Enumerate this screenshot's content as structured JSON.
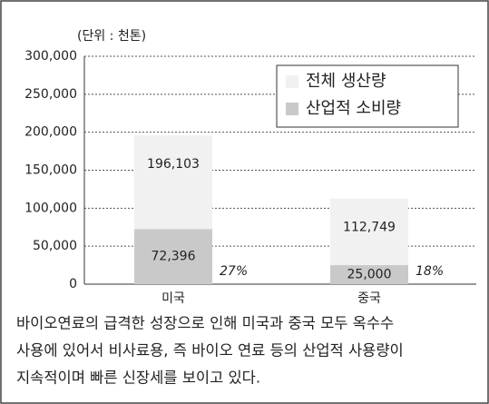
{
  "chart_data": {
    "type": "bar",
    "subtitle": "(단위 : 천톤)",
    "categories": [
      "미국",
      "중국"
    ],
    "series": [
      {
        "name": "전체 생산량",
        "color": "#f1f1f1",
        "values": [
          196103,
          112749
        ],
        "value_labels": [
          "196,103",
          "112,749"
        ]
      },
      {
        "name": "산업적 소비량",
        "color": "#c9c9c9",
        "values": [
          72396,
          25000
        ],
        "value_labels": [
          "72,396",
          "25,000"
        ]
      }
    ],
    "annotations": [
      "27%",
      "18%"
    ],
    "ylim": [
      0,
      300000
    ],
    "yticks": [
      0,
      {
        "value": 50000,
        "label": "50,000"
      },
      {
        "value": 100000,
        "label": "100,000"
      },
      {
        "value": 150000,
        "label": "150,000"
      },
      {
        "value": 200000,
        "label": "200,000"
      },
      {
        "value": 250000,
        "label": "250,000"
      },
      {
        "value": 300000,
        "label": "300,000"
      }
    ],
    "grid": true,
    "legend": "upper right",
    "overlap": true
  },
  "caption": [
    "바이오연료의 급격한 성장으로 인해 미국과 중국 모두 옥수수",
    "사용에 있어서 비사료용, 즉 바이오 연료 등의 산업적 사용량이",
    "지속적이며 빠른 신장세를 보이고 있다."
  ]
}
